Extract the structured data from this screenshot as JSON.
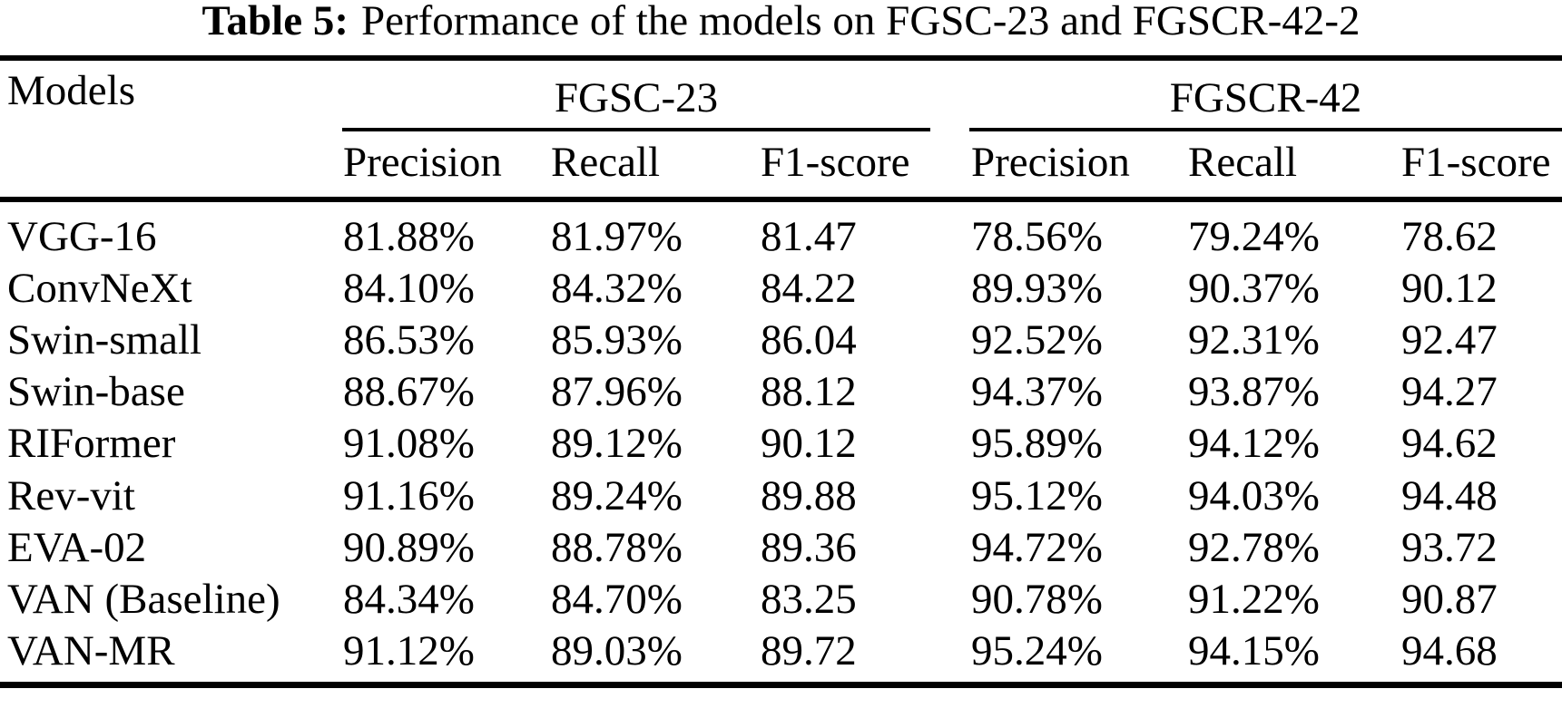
{
  "page": {
    "background_color": "#ffffff",
    "text_color": "#000000",
    "rule_color": "#000000"
  },
  "title": {
    "label": "Table 5:",
    "text": "Performance of the models on FGSC-23 and FGSCR-42-2"
  },
  "table": {
    "models_header": "Models",
    "groups": [
      {
        "label": "FGSC-23"
      },
      {
        "label": "FGSCR-42"
      }
    ],
    "sub_headers": [
      "Precision",
      "Recall",
      "F1-score",
      "Precision",
      "Recall",
      "F1-score"
    ],
    "rows": [
      {
        "model": "VGG-16",
        "values": [
          "81.88%",
          "81.97%",
          "81.47",
          "78.56%",
          "79.24%",
          "78.62"
        ]
      },
      {
        "model": "ConvNeXt",
        "values": [
          "84.10%",
          "84.32%",
          "84.22",
          "89.93%",
          "90.37%",
          "90.12"
        ]
      },
      {
        "model": "Swin-small",
        "values": [
          "86.53%",
          "85.93%",
          "86.04",
          "92.52%",
          "92.31%",
          "92.47"
        ]
      },
      {
        "model": "Swin-base",
        "values": [
          "88.67%",
          "87.96%",
          "88.12",
          "94.37%",
          "93.87%",
          "94.27"
        ]
      },
      {
        "model": "RIFormer",
        "values": [
          "91.08%",
          "89.12%",
          "90.12",
          "95.89%",
          "94.12%",
          "94.62"
        ]
      },
      {
        "model": "Rev-vit",
        "values": [
          "91.16%",
          "89.24%",
          "89.88",
          "95.12%",
          "94.03%",
          "94.48"
        ]
      },
      {
        "model": "EVA-02",
        "values": [
          "90.89%",
          "88.78%",
          "89.36",
          "94.72%",
          "92.78%",
          "93.72"
        ]
      },
      {
        "model": "VAN (Baseline)",
        "values": [
          "84.34%",
          "84.70%",
          "83.25",
          "90.78%",
          "91.22%",
          "90.87"
        ]
      },
      {
        "model": "VAN-MR",
        "values": [
          "91.12%",
          "89.03%",
          "89.72",
          "95.24%",
          "94.15%",
          "94.68"
        ]
      }
    ]
  }
}
